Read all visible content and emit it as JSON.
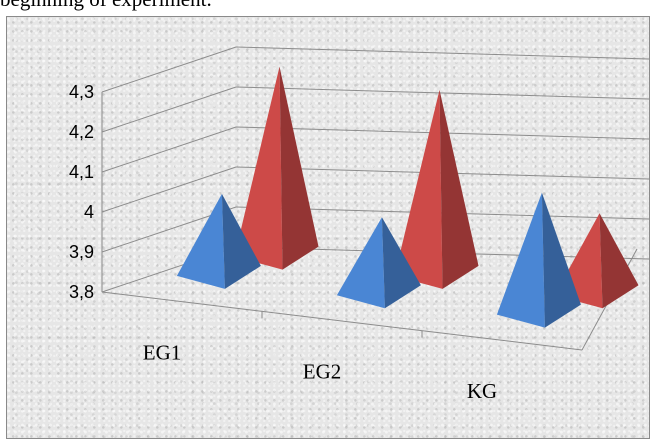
{
  "caption": "beginning of experiment.",
  "chart_data": {
    "type": "bar",
    "style": "3d-pyramid",
    "title": "",
    "xlabel": "",
    "ylabel": "",
    "ylim": [
      3.8,
      4.3
    ],
    "yticks": [
      "3,8",
      "3,9",
      "4",
      "4,1",
      "4,2",
      "4,3"
    ],
    "grid": true,
    "legend": "none",
    "categories": [
      "EG1",
      "EG2",
      "KG"
    ],
    "series": [
      {
        "values": [
          3.98,
          3.97,
          4.08
        ],
        "color": "#4a86d4"
      },
      {
        "values": [
          4.25,
          4.24,
          3.98
        ],
        "color": "#cd4a48"
      }
    ]
  }
}
